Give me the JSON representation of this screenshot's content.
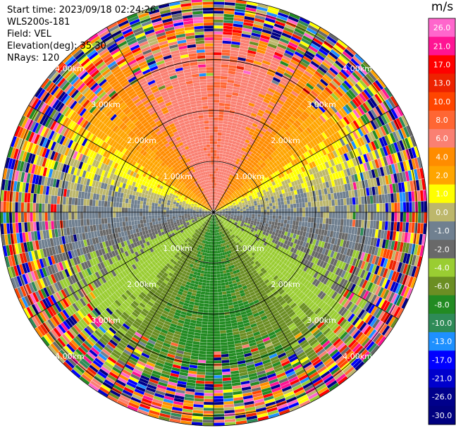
{
  "header": {
    "start_time": "Start time: 2023/09/18 02:24:26",
    "instrument": "WLS200s-181",
    "field": "Field: VEL",
    "elevation": "Elevation(deg): 35.30",
    "nrays": "NRays: 120"
  },
  "chart_data": {
    "type": "heatmap",
    "projection": "polar-ppi",
    "field": "VEL",
    "units": "m/s",
    "n_rays": 120,
    "range_max_km": 4.2,
    "range_rings_km": [
      1,
      2,
      3,
      4
    ],
    "range_ring_labels": [
      "1.00km",
      "2.00km",
      "3.00km",
      "4.00km"
    ],
    "spoke_angles_deg": [
      0,
      30,
      60,
      90,
      120,
      150,
      180,
      210,
      240,
      270,
      300,
      330
    ],
    "radial_pattern": [
      {
        "azimuth_deg": 0,
        "velocity_ms": 8
      },
      {
        "azimuth_deg": 30,
        "velocity_ms": 6
      },
      {
        "azimuth_deg": 60,
        "velocity_ms": 2
      },
      {
        "azimuth_deg": 80,
        "velocity_ms": 0
      },
      {
        "azimuth_deg": 100,
        "velocity_ms": -1
      },
      {
        "azimuth_deg": 130,
        "velocity_ms": -3
      },
      {
        "azimuth_deg": 160,
        "velocity_ms": -6
      },
      {
        "azimuth_deg": 180,
        "velocity_ms": -7
      },
      {
        "azimuth_deg": 200,
        "velocity_ms": -6
      },
      {
        "azimuth_deg": 230,
        "velocity_ms": -3
      },
      {
        "azimuth_deg": 260,
        "velocity_ms": -1
      },
      {
        "azimuth_deg": 280,
        "velocity_ms": 0
      },
      {
        "azimuth_deg": 300,
        "velocity_ms": 2
      },
      {
        "azimuth_deg": 330,
        "velocity_ms": 6
      },
      {
        "azimuth_deg": 360,
        "velocity_ms": 8
      }
    ],
    "colorbar": {
      "unit_label": "m/s",
      "ticks": [
        "26.0",
        "21.0",
        "17.0",
        "13.0",
        "10.0",
        "8.0",
        "6.0",
        "4.0",
        "2.0",
        "1.0",
        "0.0",
        "-1.0",
        "-2.0",
        "-4.0",
        "-6.0",
        "-8.0",
        "-10.0",
        "-13.0",
        "-17.0",
        "-21.0",
        "-26.0",
        "-30.0"
      ],
      "bands": [
        {
          "min": 26,
          "max": 30,
          "color": "#ff66cc"
        },
        {
          "min": 21,
          "max": 26,
          "color": "#ff1493"
        },
        {
          "min": 17,
          "max": 21,
          "color": "#ff0000"
        },
        {
          "min": 13,
          "max": 17,
          "color": "#ee2200"
        },
        {
          "min": 10,
          "max": 13,
          "color": "#ff4500"
        },
        {
          "min": 8,
          "max": 10,
          "color": "#ff6633"
        },
        {
          "min": 6,
          "max": 8,
          "color": "#fa8072"
        },
        {
          "min": 4,
          "max": 6,
          "color": "#ff8c00"
        },
        {
          "min": 2,
          "max": 4,
          "color": "#ffa500"
        },
        {
          "min": 1,
          "max": 2,
          "color": "#ffff00"
        },
        {
          "min": 0,
          "max": 1,
          "color": "#bdb76b"
        },
        {
          "min": -1,
          "max": 0,
          "color": "#708090"
        },
        {
          "min": -2,
          "max": -1,
          "color": "#696969"
        },
        {
          "min": -4,
          "max": -2,
          "color": "#9acd32"
        },
        {
          "min": -6,
          "max": -4,
          "color": "#6b8e23"
        },
        {
          "min": -8,
          "max": -6,
          "color": "#228b22"
        },
        {
          "min": -10,
          "max": -8,
          "color": "#2e8b57"
        },
        {
          "min": -13,
          "max": -10,
          "color": "#1e90ff"
        },
        {
          "min": -17,
          "max": -13,
          "color": "#0000ff"
        },
        {
          "min": -21,
          "max": -17,
          "color": "#0000cd"
        },
        {
          "min": -26,
          "max": -21,
          "color": "#00008b"
        },
        {
          "min": -30,
          "max": -26,
          "color": "#000080"
        }
      ]
    }
  }
}
